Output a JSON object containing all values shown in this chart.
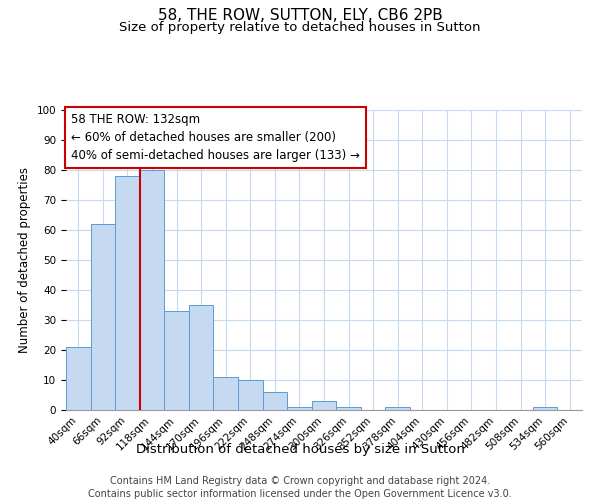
{
  "title": "58, THE ROW, SUTTON, ELY, CB6 2PB",
  "subtitle": "Size of property relative to detached houses in Sutton",
  "xlabel": "Distribution of detached houses by size in Sutton",
  "ylabel": "Number of detached properties",
  "bar_labels": [
    "40sqm",
    "66sqm",
    "92sqm",
    "118sqm",
    "144sqm",
    "170sqm",
    "196sqm",
    "222sqm",
    "248sqm",
    "274sqm",
    "300sqm",
    "326sqm",
    "352sqm",
    "378sqm",
    "404sqm",
    "430sqm",
    "456sqm",
    "482sqm",
    "508sqm",
    "534sqm",
    "560sqm"
  ],
  "bar_values": [
    21,
    62,
    78,
    80,
    33,
    35,
    11,
    10,
    6,
    1,
    3,
    1,
    0,
    1,
    0,
    0,
    0,
    0,
    0,
    1,
    0
  ],
  "bar_color": "#c5d9f1",
  "bar_edge_color": "#5b9bd5",
  "vline_x": 2.5,
  "vline_color": "#cc0000",
  "annotation_text": "58 THE ROW: 132sqm\n← 60% of detached houses are smaller (200)\n40% of semi-detached houses are larger (133) →",
  "annotation_box_color": "#ffffff",
  "annotation_box_edge_color": "#cc0000",
  "ylim": [
    0,
    100
  ],
  "yticks": [
    0,
    10,
    20,
    30,
    40,
    50,
    60,
    70,
    80,
    90,
    100
  ],
  "footer_line1": "Contains HM Land Registry data © Crown copyright and database right 2024.",
  "footer_line2": "Contains public sector information licensed under the Open Government Licence v3.0.",
  "bg_color": "#ffffff",
  "grid_color": "#c5d9f1",
  "title_fontsize": 11,
  "subtitle_fontsize": 9.5,
  "xlabel_fontsize": 9.5,
  "ylabel_fontsize": 8.5,
  "tick_fontsize": 7.5,
  "footer_fontsize": 7,
  "annot_fontsize": 8.5
}
